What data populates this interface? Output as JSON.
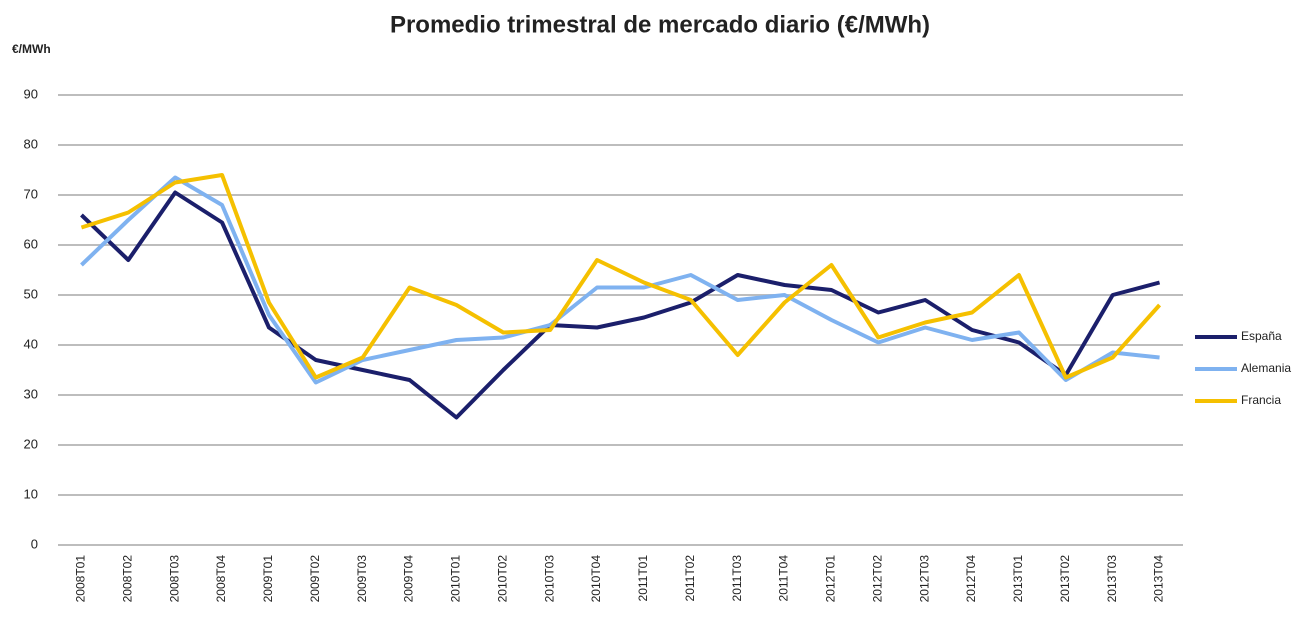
{
  "chart_data": {
    "type": "line",
    "title": "Promedio trimestral de mercado diario (€/MWh)",
    "y_axis_label": "€/MWh",
    "categories": [
      "2008T01",
      "2008T02",
      "2008T03",
      "2008T04",
      "2009T01",
      "2009T02",
      "2009T03",
      "2009T04",
      "2010T01",
      "2010T02",
      "2010T03",
      "2010T04",
      "2011T01",
      "2011T02",
      "2011T03",
      "2011T04",
      "2012T01",
      "2012T02",
      "2012T03",
      "2012T04",
      "2013T01",
      "2013T02",
      "2013T03",
      "2013T04"
    ],
    "series": [
      {
        "name": "España",
        "color": "#1b1f6b",
        "values": [
          66,
          57,
          70.5,
          64.5,
          43.5,
          37,
          35,
          33,
          25.5,
          35,
          44,
          43.5,
          45.5,
          48.5,
          54,
          52,
          51,
          46.5,
          49,
          43,
          40.5,
          34,
          50,
          52.5
        ]
      },
      {
        "name": "Alemania",
        "color": "#7fb2f0",
        "values": [
          56,
          65,
          73.5,
          68,
          46,
          32.5,
          37,
          39,
          41,
          41.5,
          44,
          51.5,
          51.5,
          54,
          49,
          50,
          45,
          40.5,
          43.5,
          41,
          42.5,
          33,
          38.5,
          37.5
        ]
      },
      {
        "name": "Francia",
        "color": "#f5c000",
        "values": [
          63.5,
          66.5,
          72.5,
          74,
          48.5,
          33.5,
          37.5,
          51.5,
          48,
          42.5,
          43,
          57,
          52.5,
          49,
          38,
          48.5,
          56,
          41.5,
          44.5,
          46.5,
          54,
          33.5,
          37.5,
          48
        ]
      }
    ],
    "ylim": [
      0,
      90
    ],
    "yticks": [
      0,
      10,
      20,
      30,
      40,
      50,
      60,
      70,
      80,
      90
    ],
    "grid": true,
    "legend": "right"
  }
}
